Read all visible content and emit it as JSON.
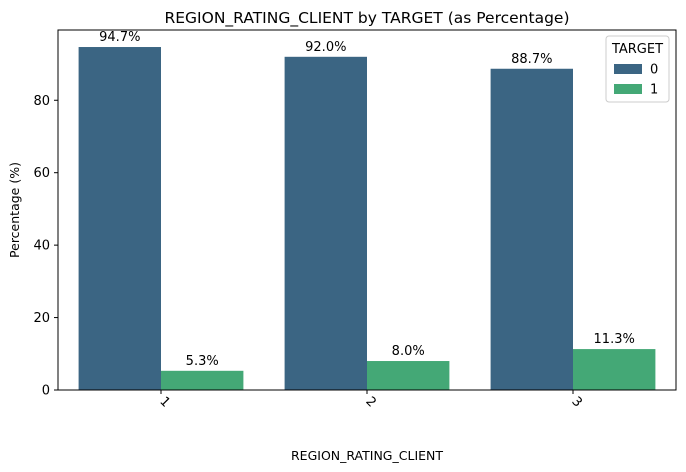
{
  "chart_data": {
    "type": "bar",
    "title": "REGION_RATING_CLIENT by TARGET (as Percentage)",
    "xlabel": "REGION_RATING_CLIENT",
    "ylabel": "Percentage (%)",
    "categories": [
      "1",
      "2",
      "3"
    ],
    "ylim": [
      0,
      99.4
    ],
    "yticks": [
      0,
      20,
      40,
      60,
      80
    ],
    "grid": false,
    "x_tick_rotation": 45,
    "legend": {
      "title": "TARGET",
      "placement": "top-right"
    },
    "series": [
      {
        "name": "0",
        "color": "#3b6583",
        "values": [
          94.7,
          92.0,
          88.7
        ],
        "labels": [
          "94.7%",
          "92.0%",
          "88.7%"
        ]
      },
      {
        "name": "1",
        "color": "#44a876",
        "values": [
          5.3,
          8.0,
          11.3
        ],
        "labels": [
          "5.3%",
          "8.0%",
          "11.3%"
        ]
      }
    ]
  }
}
